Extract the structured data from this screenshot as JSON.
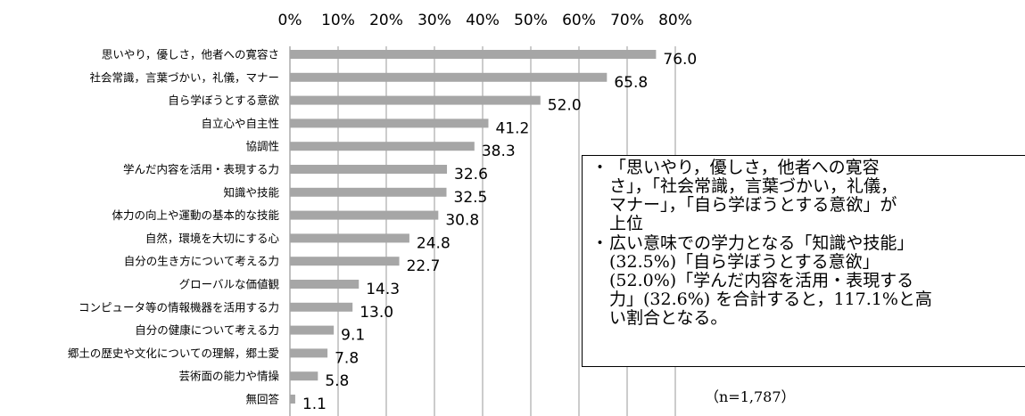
{
  "chart_data": {
    "type": "bar",
    "orientation": "horizontal",
    "categories": [
      "思いやり，優しさ，他者への寛容さ",
      "社会常識，言葉づかい，礼儀，マナー",
      "自ら学ぼうとする意欲",
      "自立心や自主性",
      "協調性",
      "学んだ内容を活用・表現する力",
      "知識や技能",
      "体力の向上や運動の基本的な技能",
      "自然，環境を大切にする心",
      "自分の生き方について考える力",
      "グローバルな価値観",
      "コンピュータ等の情報機器を活用する力",
      "自分の健康について考える力",
      "郷土の歴史や文化についての理解，郷土愛",
      "芸術面の能力や情操",
      "無回答"
    ],
    "values": [
      76.0,
      65.8,
      52.0,
      41.2,
      38.3,
      32.6,
      32.5,
      30.8,
      24.8,
      22.7,
      14.3,
      13.0,
      9.1,
      7.8,
      5.8,
      1.1
    ],
    "value_labels": [
      "76.0",
      "65.8",
      "52.0",
      "41.2",
      "38.3",
      "32.6",
      "32.5",
      "30.8",
      "24.8",
      "22.7",
      "14.3",
      "13.0",
      "9.1",
      "7.8",
      "5.8",
      "1.1"
    ],
    "xlim": [
      0,
      80
    ],
    "x_ticks": [
      "0%",
      "10%",
      "20%",
      "30%",
      "40%",
      "50%",
      "60%",
      "70%",
      "80%"
    ],
    "x_axis_position": "top",
    "grid": true,
    "bar_color": "#a6a6a6",
    "grid_color": "#999999",
    "title": "",
    "xlabel": "",
    "ylabel": ""
  },
  "note": {
    "items": [
      {
        "bullet": "・",
        "lines": [
          "「思いやり，優しさ，他者への寛容",
          "さ」，「社会常識，言葉づかい，礼儀，",
          "マナー」，「自ら学ぼうとする意欲」が",
          "上位"
        ]
      },
      {
        "bullet": "・",
        "lines": [
          "広い意味での学力となる「知識や技能」",
          "(32.5%)「自ら学ぼうとする意欲」",
          "(52.0%)「学んだ内容を活用・表現する",
          "力」(32.6%) を合計すると，117.1%と高",
          "い割合となる。"
        ]
      }
    ]
  },
  "sample_size": "（n=1,787）"
}
